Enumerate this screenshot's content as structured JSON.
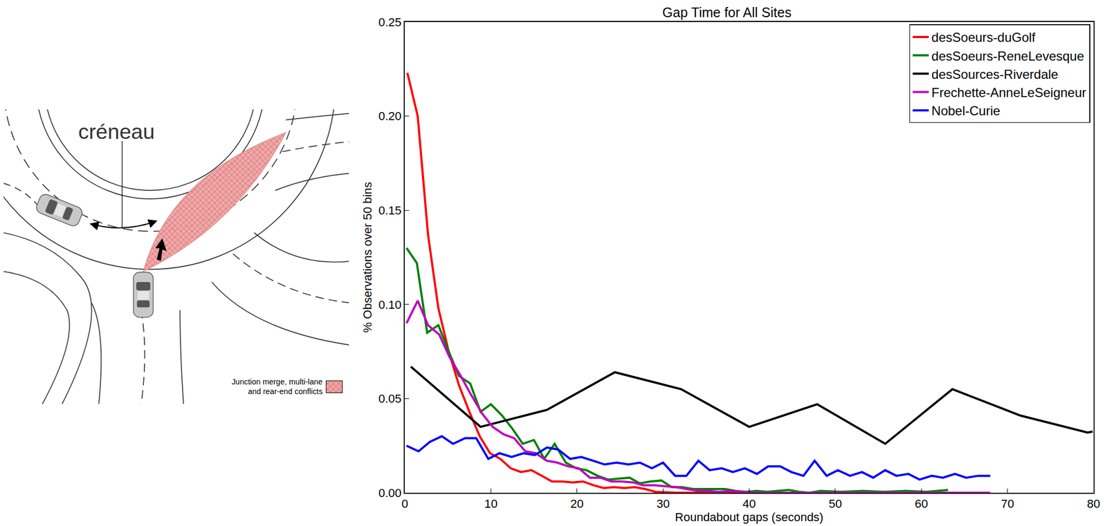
{
  "diagram": {
    "gap_label": "créneau",
    "legend_lines": [
      "Junction merge, multi-lane",
      "and rear-end conflicts"
    ]
  },
  "chart_data": {
    "type": "line",
    "title": "Gap Time for All Sites",
    "x_label": "Roundabout gaps (seconds)",
    "y_label": "% Observations over 50 bins",
    "xlim": [
      0,
      80
    ],
    "xticks": [
      0,
      10,
      20,
      30,
      40,
      50,
      60,
      70,
      80
    ],
    "ylim": [
      0,
      0.25
    ],
    "yticks": [
      {
        "value": 0,
        "label": "0.00"
      },
      {
        "value": 0.05,
        "label": "0.05"
      },
      {
        "value": 0.1,
        "label": "0.10"
      },
      {
        "value": 0.15,
        "label": "0.15"
      },
      {
        "value": 0.2,
        "label": "0.20"
      },
      {
        "value": 0.25,
        "label": "0.25"
      }
    ],
    "grid": false,
    "legend": "upper right",
    "series": [
      {
        "name": "desSoeurs-duGolf",
        "color": "#ff0000",
        "x": [
          0.3,
          1.5,
          2.7,
          3.9,
          5.1,
          6.3,
          7.5,
          8.7,
          9.9,
          11.1,
          12.3,
          13.5,
          14.7,
          15.9,
          17.1,
          18.3,
          19.5,
          20.7,
          21.9,
          23.1,
          24.3,
          25.5,
          26.7,
          27.9,
          29.1,
          30.3,
          31.5,
          35,
          40,
          45,
          50,
          55,
          61
        ],
        "values": [
          0.223,
          0.2,
          0.137,
          0.098,
          0.075,
          0.057,
          0.043,
          0.03,
          0.021,
          0.018,
          0.013,
          0.011,
          0.012,
          0.009,
          0.006,
          0.006,
          0.0055,
          0.006,
          0.004,
          0.0025,
          0.003,
          0.0025,
          0.003,
          0.002,
          0.0005,
          0.0003,
          0,
          0,
          0,
          0,
          0,
          0,
          0
        ]
      },
      {
        "name": "desSoeurs-ReneLevesque",
        "color": "#008000",
        "x": [
          0.2,
          1.4,
          2.6,
          3.9,
          5.1,
          6.3,
          7.6,
          8.8,
          10.0,
          11.3,
          12.5,
          13.7,
          15.0,
          16.2,
          17.4,
          18.7,
          19.9,
          21.1,
          22.4,
          23.6,
          24.8,
          26.1,
          27.3,
          28.5,
          29.8,
          31.0,
          32.2,
          33.5,
          34.7,
          35.9,
          37.2,
          38.4,
          39.6,
          40.9,
          42.1,
          43.3,
          44.6,
          45.8,
          47.0,
          48.3,
          50.7,
          53.2,
          55.7,
          58.2,
          60.6,
          63.1
        ],
        "values": [
          0.13,
          0.122,
          0.085,
          0.089,
          0.075,
          0.062,
          0.058,
          0.043,
          0.047,
          0.041,
          0.034,
          0.026,
          0.028,
          0.018,
          0.026,
          0.016,
          0.013,
          0.012,
          0.009,
          0.007,
          0.0075,
          0.008,
          0.005,
          0.006,
          0.0065,
          0.003,
          0.003,
          0.002,
          0.002,
          0.002,
          0.002,
          0.001,
          0.0005,
          0.001,
          0.0005,
          0.001,
          0.0015,
          0.0005,
          0,
          0.001,
          0.0005,
          0.001,
          0.0005,
          0.001,
          0.0005,
          0.0015
        ]
      },
      {
        "name": "desSources-Riverdale",
        "color": "#000000",
        "x": [
          0.7,
          8.8,
          16.5,
          24.4,
          32.1,
          40.0,
          47.9,
          55.8,
          63.6,
          71.5,
          79.3,
          79.9
        ],
        "values": [
          0.067,
          0.035,
          0.044,
          0.064,
          0.055,
          0.035,
          0.047,
          0.026,
          0.055,
          0.041,
          0.032,
          0.0325
        ]
      },
      {
        "name": "Frechette-AnneLeSeigneur",
        "color": "#bf00bf",
        "x": [
          0.2,
          1.5,
          2.7,
          4.0,
          5.2,
          6.5,
          7.7,
          9.0,
          10.2,
          11.5,
          12.7,
          14.0,
          15.2,
          16.5,
          17.7,
          19.0,
          20.2,
          21.5,
          22.7,
          24.0,
          25.2,
          26.5,
          27.7,
          29.0,
          30.2,
          31.5,
          32.7,
          34.0,
          35.2,
          36.5,
          37.7,
          39.0,
          40.2,
          45,
          50,
          55,
          60,
          65,
          68
        ],
        "values": [
          0.09,
          0.102,
          0.089,
          0.084,
          0.072,
          0.062,
          0.052,
          0.042,
          0.035,
          0.031,
          0.029,
          0.022,
          0.021,
          0.017,
          0.016,
          0.014,
          0.013,
          0.008,
          0.008,
          0.006,
          0.006,
          0.0055,
          0.004,
          0.004,
          0.0035,
          0.003,
          0.002,
          0.001,
          0.001,
          0.0005,
          0.001,
          0.0005,
          0,
          0,
          0,
          0,
          0,
          0,
          0
        ]
      },
      {
        "name": "Nobel-Curie",
        "color": "#0000ff",
        "x": [
          0.2,
          1.6,
          2.9,
          4.3,
          5.6,
          7.0,
          8.3,
          9.7,
          11.0,
          12.4,
          13.8,
          15.1,
          16.5,
          17.8,
          19.2,
          20.5,
          21.9,
          23.2,
          24.6,
          26.0,
          27.3,
          28.7,
          30.0,
          31.4,
          32.7,
          34.1,
          35.4,
          36.8,
          38.1,
          39.5,
          40.9,
          42.2,
          43.6,
          44.9,
          46.3,
          47.6,
          49.0,
          50.3,
          51.7,
          53.1,
          54.4,
          55.8,
          57.1,
          58.5,
          59.8,
          61.2,
          62.5,
          63.9,
          65.2,
          66.6,
          68.0
        ],
        "values": [
          0.025,
          0.022,
          0.027,
          0.03,
          0.026,
          0.029,
          0.029,
          0.018,
          0.021,
          0.019,
          0.021,
          0.02,
          0.024,
          0.023,
          0.018,
          0.019,
          0.017,
          0.015,
          0.016,
          0.015,
          0.016,
          0.013,
          0.016,
          0.009,
          0.009,
          0.017,
          0.012,
          0.013,
          0.011,
          0.013,
          0.01,
          0.014,
          0.014,
          0.011,
          0.009,
          0.017,
          0.009,
          0.012,
          0.009,
          0.011,
          0.008,
          0.012,
          0.009,
          0.01,
          0.007,
          0.009,
          0.008,
          0.01,
          0.008,
          0.009,
          0.009
        ]
      }
    ]
  }
}
